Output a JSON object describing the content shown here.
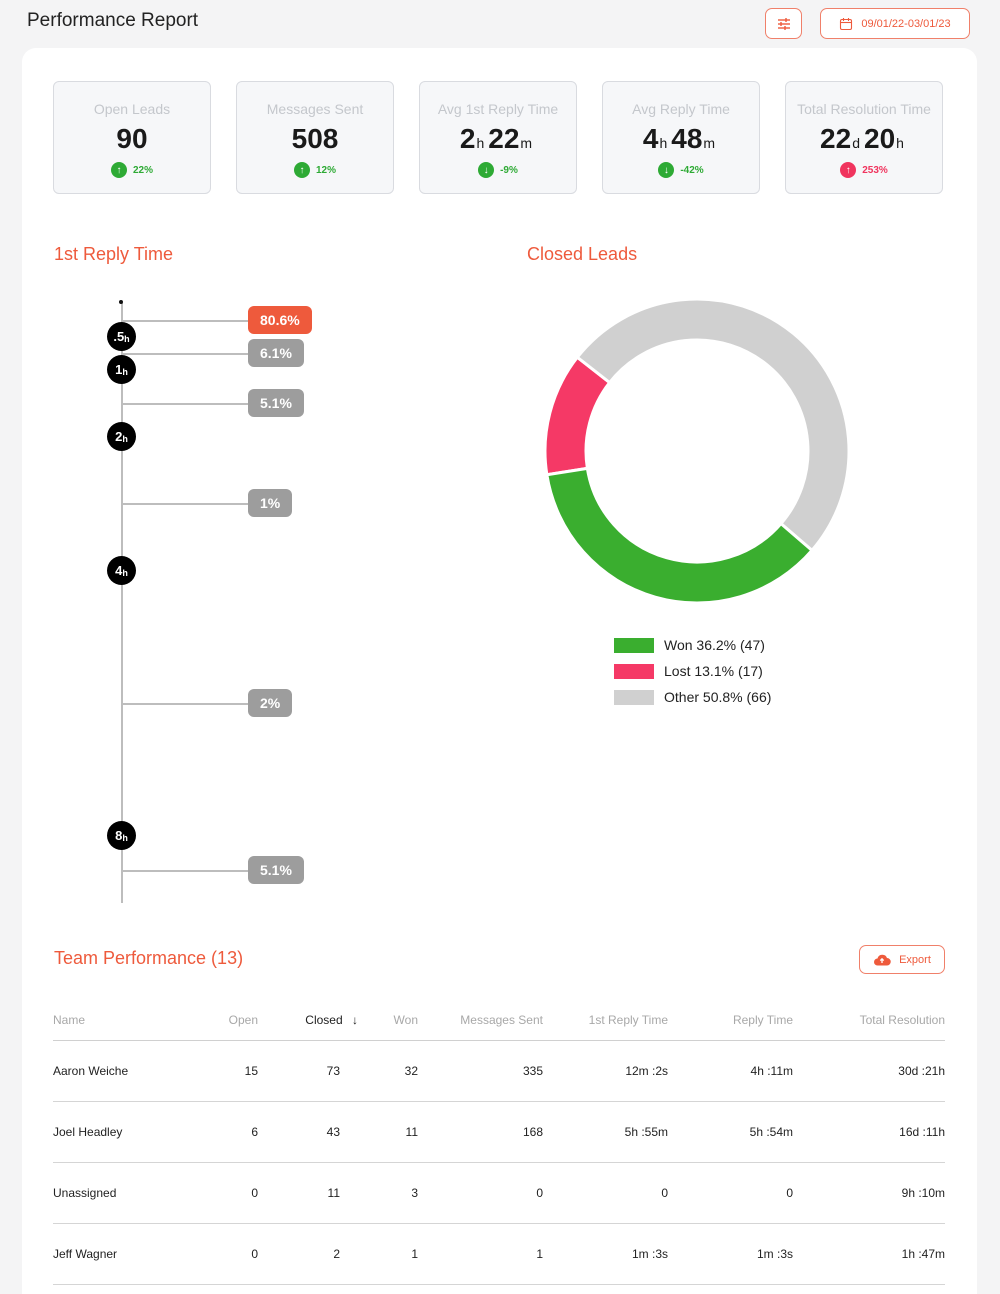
{
  "header": {
    "title": "Performance Report",
    "date_range": "09/01/22-03/01/23",
    "filter_icon": "sliders-icon",
    "calendar_icon": "calendar-icon"
  },
  "stats": [
    {
      "label": "Open Leads",
      "value": "90",
      "unit": "",
      "value2": "",
      "unit2": "",
      "change": "22%",
      "direction": "up",
      "status": "good"
    },
    {
      "label": "Messages Sent",
      "value": "508",
      "unit": "",
      "value2": "",
      "unit2": "",
      "change": "12%",
      "direction": "up",
      "status": "good"
    },
    {
      "label": "Avg 1st Reply Time",
      "value": "2",
      "unit": "h",
      "value2": "22",
      "unit2": "m",
      "change": "-9%",
      "direction": "down",
      "status": "good"
    },
    {
      "label": "Avg Reply Time",
      "value": "4",
      "unit": "h",
      "value2": "48",
      "unit2": "m",
      "change": "-42%",
      "direction": "down",
      "status": "good"
    },
    {
      "label": "Total Resolution Time",
      "value": "22",
      "unit": "d",
      "value2": "20",
      "unit2": "h",
      "change": "253%",
      "direction": "up",
      "status": "bad"
    }
  ],
  "first_reply": {
    "title": "1st Reply Time",
    "nodes": [
      {
        "num": ".5",
        "sub": "h"
      },
      {
        "num": "1",
        "sub": "h"
      },
      {
        "num": "2",
        "sub": "h"
      },
      {
        "num": "4",
        "sub": "h"
      },
      {
        "num": "8",
        "sub": "h"
      }
    ],
    "buckets": [
      {
        "label": "80.6%",
        "value": 80.6,
        "highlight": true
      },
      {
        "label": "6.1%",
        "value": 6.1,
        "highlight": false
      },
      {
        "label": "5.1%",
        "value": 5.1,
        "highlight": false
      },
      {
        "label": "1%",
        "value": 1,
        "highlight": false
      },
      {
        "label": "2%",
        "value": 2,
        "highlight": false
      },
      {
        "label": "5.1%",
        "value": 5.1,
        "highlight": false
      }
    ]
  },
  "closed_leads": {
    "title": "Closed Leads",
    "chart_data": {
      "type": "pie",
      "categories": [
        "Won",
        "Lost",
        "Other"
      ],
      "values": [
        47,
        17,
        66
      ],
      "percents": [
        36.2,
        13.1,
        50.8
      ],
      "colors": [
        "#3aae2f",
        "#f53966",
        "#d0d0d0"
      ],
      "legend_labels": [
        "Won 36.2% (47)",
        "Lost 13.1% (17)",
        "Other 50.8% (66)"
      ]
    }
  },
  "team": {
    "title": "Team Performance (13)",
    "export_label": "Export",
    "columns": [
      "Name",
      "Open",
      "Closed",
      "Won",
      "Messages Sent",
      "1st Reply Time",
      "Reply Time",
      "Total Resolution"
    ],
    "sort_column": "Closed",
    "rows": [
      [
        "Aaron Weiche",
        "15",
        "73",
        "32",
        "335",
        "12m :2s",
        "4h :11m",
        "30d :21h"
      ],
      [
        "Joel Headley",
        "6",
        "43",
        "11",
        "168",
        "5h :55m",
        "5h :54m",
        "16d :11h"
      ],
      [
        "Unassigned",
        "0",
        "11",
        "3",
        "0",
        "0",
        "0",
        "9h :10m"
      ],
      [
        "Jeff Wagner",
        "0",
        "2",
        "1",
        "1",
        "1m :3s",
        "1m :3s",
        "1h :47m"
      ]
    ]
  }
}
